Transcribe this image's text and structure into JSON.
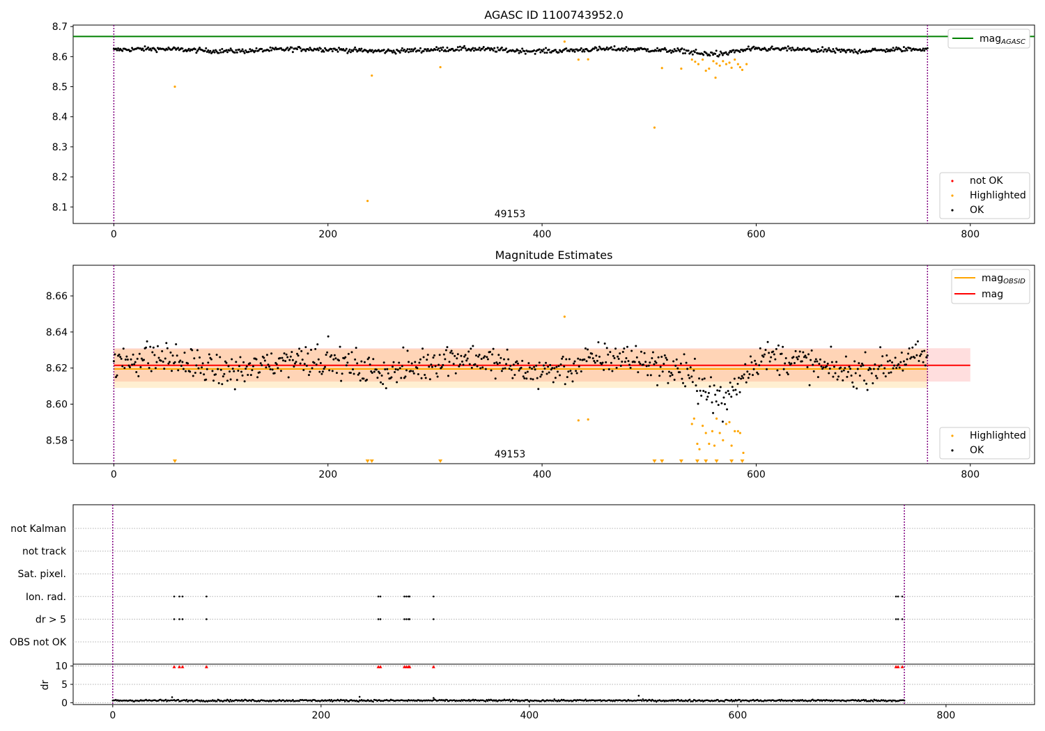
{
  "chart_data": [
    {
      "type": "scatter",
      "title": "AGASC ID 1100743952.0",
      "xlim": [
        -38,
        860
      ],
      "ylim": [
        8.045,
        8.705
      ],
      "xticks": [
        0,
        200,
        400,
        600,
        800
      ],
      "yticks": [
        8.1,
        8.2,
        8.3,
        8.4,
        8.5,
        8.6,
        8.7
      ],
      "ytick_labels": [
        "8.1",
        "8.2",
        "8.3",
        "8.4",
        "8.5",
        "8.6",
        "8.7"
      ],
      "annotation": "49153",
      "vlines": [
        0,
        760
      ],
      "hline": {
        "name": "mag_AGASC",
        "value": 8.667,
        "color": "#008000"
      },
      "series": [
        {
          "name": "not OK",
          "color": "#ff0000",
          "values": []
        },
        {
          "name": "Highlighted",
          "color": "#ffa500",
          "points": [
            [
              57,
              8.5
            ],
            [
              237,
              8.12
            ],
            [
              241,
              8.537
            ],
            [
              305,
              8.565
            ],
            [
              421,
              8.65
            ],
            [
              434,
              8.59
            ],
            [
              443,
              8.591
            ],
            [
              505,
              8.364
            ],
            [
              512,
              8.562
            ],
            [
              530,
              8.56
            ],
            [
              540,
              8.59
            ],
            [
              543,
              8.583
            ],
            [
              546,
              8.575
            ],
            [
              550,
              8.59
            ],
            [
              553,
              8.553
            ],
            [
              556,
              8.56
            ],
            [
              560,
              8.585
            ],
            [
              563,
              8.577
            ],
            [
              566,
              8.57
            ],
            [
              569,
              8.585
            ],
            [
              572,
              8.575
            ],
            [
              575,
              8.58
            ],
            [
              577,
              8.563
            ],
            [
              580,
              8.59
            ],
            [
              583,
              8.575
            ],
            [
              585,
              8.565
            ],
            [
              587,
              8.556
            ],
            [
              591,
              8.575
            ],
            [
              562,
              8.53
            ]
          ]
        },
        {
          "name": "OK",
          "color": "#000000",
          "mean": 8.622,
          "spread": 0.008,
          "x_range": [
            0,
            760
          ],
          "dips": [
            [
              535,
              590,
              8.607
            ]
          ]
        }
      ],
      "legend": {
        "position": "lower-right",
        "entries": [
          "not OK",
          "Highlighted",
          "OK"
        ]
      },
      "legend2": {
        "position": "upper-right",
        "entries": [
          "mag",
          "AGASC"
        ]
      }
    },
    {
      "type": "scatter",
      "title": "Magnitude Estimates",
      "xlim": [
        -38,
        860
      ],
      "ylim": [
        8.567,
        8.677
      ],
      "xticks": [
        0,
        200,
        400,
        600,
        800
      ],
      "yticks": [
        8.58,
        8.6,
        8.62,
        8.64,
        8.66
      ],
      "ytick_labels": [
        "8.58",
        "8.60",
        "8.62",
        "8.64",
        "8.66"
      ],
      "annotation": "49153",
      "vlines": [
        0,
        760
      ],
      "mag_obsid": {
        "value": 8.6195,
        "band": [
          8.609,
          8.6305
        ],
        "x_range": [
          0,
          760
        ],
        "color": "#ffa500"
      },
      "mag": {
        "value": 8.6215,
        "band": [
          8.6125,
          8.631
        ],
        "x_range": [
          0,
          800
        ],
        "color": "#ff0000"
      },
      "series": [
        {
          "name": "Highlighted",
          "color": "#ffa500",
          "points": [
            [
              421,
              8.6485
            ],
            [
              434,
              8.591
            ],
            [
              443,
              8.5915
            ],
            [
              540,
              8.589
            ],
            [
              542,
              8.592
            ],
            [
              545,
              8.578
            ],
            [
              547,
              8.575
            ],
            [
              550,
              8.588
            ],
            [
              553,
              8.584
            ],
            [
              556,
              8.578
            ],
            [
              559,
              8.585
            ],
            [
              561,
              8.577
            ],
            [
              563,
              8.592
            ],
            [
              566,
              8.584
            ],
            [
              569,
              8.58
            ],
            [
              572,
              8.589
            ],
            [
              575,
              8.59
            ],
            [
              577,
              8.577
            ],
            [
              580,
              8.585
            ],
            [
              583,
              8.585
            ],
            [
              585,
              8.584
            ],
            [
              588,
              8.573
            ]
          ]
        },
        {
          "name": "Highlighted-clipped",
          "color": "#ffa500",
          "x": [
            57,
            237,
            241,
            305,
            505,
            512,
            530,
            545,
            553,
            563,
            577,
            587
          ]
        },
        {
          "name": "OK",
          "color": "#000000",
          "mean": 8.622,
          "spread": 0.008,
          "x_range": [
            0,
            760
          ],
          "dips": [
            [
              535,
              600,
              8.598
            ]
          ]
        }
      ],
      "legend": {
        "position": "lower-right",
        "entries": [
          "Highlighted",
          "OK"
        ]
      },
      "legend2": {
        "position": "upper-right",
        "entries": [
          "mag",
          "OBSID",
          "mag"
        ]
      }
    },
    {
      "type": "scatter",
      "xlim": [
        -38,
        885
      ],
      "xticks": [
        0,
        200,
        400,
        600,
        800
      ],
      "flag_rows": [
        "not Kalman",
        "not track",
        "Sat. pixel.",
        "Ion. rad.",
        "dr > 5",
        "OBS not OK"
      ],
      "flag_points": {
        "Ion. rad.": [
          59,
          64,
          67,
          90,
          255,
          257,
          280,
          282,
          284,
          285,
          308,
          752,
          754,
          758
        ],
        "dr > 5": [
          59,
          64,
          67,
          90,
          255,
          257,
          280,
          282,
          284,
          285,
          308,
          752,
          754,
          758
        ]
      },
      "dr": {
        "ylabel": "dr",
        "ylim": [
          0,
          10
        ],
        "yticks": [
          0,
          5,
          10
        ],
        "clipped_x": [
          59,
          64,
          67,
          90,
          255,
          257,
          280,
          282,
          284,
          285,
          308,
          752,
          754,
          758
        ],
        "baseline": 0.6,
        "spikes": [
          [
            57,
            1.5
          ],
          [
            237,
            1.6
          ],
          [
            505,
            1.9
          ],
          [
            308,
            1.3
          ]
        ]
      },
      "vlines": [
        0,
        760
      ]
    }
  ]
}
